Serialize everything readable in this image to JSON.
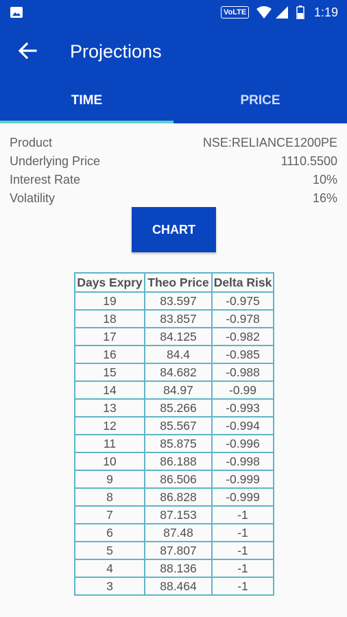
{
  "status_bar": {
    "network": "VoLTE",
    "time": "1:19"
  },
  "header": {
    "title": "Projections"
  },
  "tabs": [
    {
      "label": "TIME"
    },
    {
      "label": "PRICE"
    }
  ],
  "info": {
    "product": {
      "label": "Product",
      "value": "NSE:RELIANCE1200PE"
    },
    "underlying_price": {
      "label": "Underlying Price",
      "value": "1110.5500"
    },
    "interest_rate": {
      "label": "Interest Rate",
      "value": "10%"
    },
    "volatility": {
      "label": "Volatility",
      "value": "16%"
    }
  },
  "chart_button": {
    "label": "CHART"
  },
  "table": {
    "columns": [
      "Days Expry",
      "Theo Price",
      "Delta Risk"
    ],
    "rows": [
      [
        "19",
        "83.597",
        "-0.975"
      ],
      [
        "18",
        "83.857",
        "-0.978"
      ],
      [
        "17",
        "84.125",
        "-0.982"
      ],
      [
        "16",
        "84.4",
        "-0.985"
      ],
      [
        "15",
        "84.682",
        "-0.988"
      ],
      [
        "14",
        "84.97",
        "-0.99"
      ],
      [
        "13",
        "85.266",
        "-0.993"
      ],
      [
        "12",
        "85.567",
        "-0.994"
      ],
      [
        "11",
        "85.875",
        "-0.996"
      ],
      [
        "10",
        "86.188",
        "-0.998"
      ],
      [
        "9",
        "86.506",
        "-0.999"
      ],
      [
        "8",
        "86.828",
        "-0.999"
      ],
      [
        "7",
        "87.153",
        "-1"
      ],
      [
        "6",
        "87.48",
        "-1"
      ],
      [
        "5",
        "87.807",
        "-1"
      ],
      [
        "4",
        "88.136",
        "-1"
      ],
      [
        "3",
        "88.464",
        "-1"
      ]
    ]
  },
  "colors": {
    "primary": "#0a45c0",
    "tab_indicator": "#5fd3c8",
    "table_border": "#5fb5c8"
  },
  "icons": {
    "status_left": "image-icon",
    "back": "arrow-back-icon",
    "status_right": [
      "wifi-icon",
      "signal-icon",
      "battery-icon"
    ]
  }
}
